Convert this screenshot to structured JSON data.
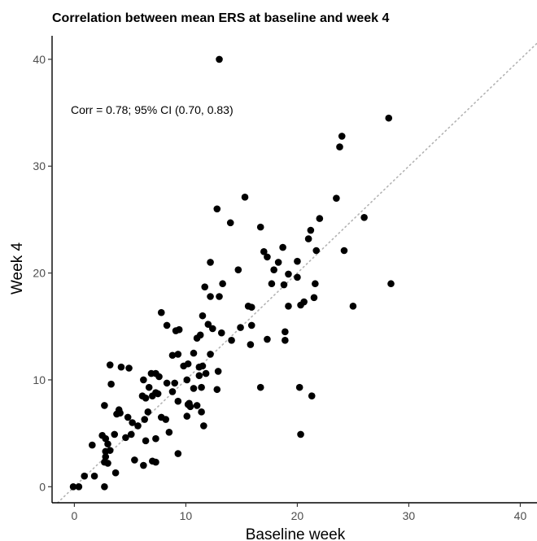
{
  "chart_data": {
    "type": "scatter",
    "title": "Correlation between mean ERS at baseline and week 4",
    "xlabel": "Baseline week",
    "ylabel": "Week 4",
    "annotation": "Corr = 0.78; 95% CI (0.70, 0.83)",
    "xlim": [
      -2,
      41.5
    ],
    "ylim": [
      -1.5,
      42.2
    ],
    "x_ticks": [
      0,
      10,
      20,
      30,
      40
    ],
    "y_ticks": [
      0,
      10,
      20,
      30,
      40
    ],
    "x_tick_labels": [
      "0",
      "10",
      "20",
      "30",
      "40"
    ],
    "y_tick_labels": [
      "0",
      "10",
      "20",
      "30",
      "40"
    ],
    "grid": false,
    "reference_line": "identity (y = x), dotted grey",
    "point_color": "#000000",
    "reference_line_color": "#b3b3b3",
    "points": [
      [
        13,
        40
      ],
      [
        28.2,
        34.5
      ],
      [
        24,
        32.8
      ],
      [
        23.8,
        31.8
      ],
      [
        15.3,
        27.1
      ],
      [
        23.5,
        27
      ],
      [
        12.8,
        26
      ],
      [
        26,
        25.2
      ],
      [
        22,
        25.1
      ],
      [
        14,
        24.7
      ],
      [
        16.7,
        24.3
      ],
      [
        21.2,
        24
      ],
      [
        21,
        23.2
      ],
      [
        18.7,
        22.4
      ],
      [
        24.2,
        22.1
      ],
      [
        21.7,
        22.1
      ],
      [
        17,
        22
      ],
      [
        17.3,
        21.5
      ],
      [
        18.3,
        21
      ],
      [
        20,
        21.1
      ],
      [
        12.2,
        21
      ],
      [
        17.9,
        20.3
      ],
      [
        14.7,
        20.3
      ],
      [
        19.2,
        19.9
      ],
      [
        20,
        19.6
      ],
      [
        13.3,
        19
      ],
      [
        28.4,
        19
      ],
      [
        17.7,
        19
      ],
      [
        18.8,
        18.9
      ],
      [
        21.6,
        19
      ],
      [
        11.7,
        18.7
      ],
      [
        12.2,
        17.8
      ],
      [
        13,
        17.8
      ],
      [
        21.5,
        17.7
      ],
      [
        20.6,
        17.3
      ],
      [
        20.3,
        17
      ],
      [
        25,
        16.9
      ],
      [
        19.2,
        16.9
      ],
      [
        15.6,
        16.9
      ],
      [
        15.9,
        16.8
      ],
      [
        7.8,
        16.3
      ],
      [
        11.5,
        16
      ],
      [
        8.3,
        15.1
      ],
      [
        12,
        15.2
      ],
      [
        12.4,
        14.8
      ],
      [
        14.9,
        14.9
      ],
      [
        15.9,
        15.1
      ],
      [
        9.1,
        14.6
      ],
      [
        9.4,
        14.7
      ],
      [
        11.3,
        14.2
      ],
      [
        13.2,
        14.4
      ],
      [
        18.9,
        14.5
      ],
      [
        18.9,
        13.7
      ],
      [
        14.1,
        13.7
      ],
      [
        11,
        13.9
      ],
      [
        17.3,
        13.8
      ],
      [
        15.8,
        13.3
      ],
      [
        10.7,
        12.5
      ],
      [
        9.3,
        12.4
      ],
      [
        8.8,
        12.3
      ],
      [
        12.2,
        12.4
      ],
      [
        3.2,
        11.4
      ],
      [
        4.2,
        11.2
      ],
      [
        4.9,
        11.1
      ],
      [
        10.2,
        11.5
      ],
      [
        11.2,
        11.2
      ],
      [
        11.5,
        11.3
      ],
      [
        9.8,
        11.3
      ],
      [
        7.3,
        10.6
      ],
      [
        12.9,
        10.8
      ],
      [
        11.8,
        10.6
      ],
      [
        11.2,
        10.4
      ],
      [
        7.6,
        10.3
      ],
      [
        6.9,
        10.6
      ],
      [
        6.2,
        10
      ],
      [
        10.1,
        10
      ],
      [
        8.3,
        9.7
      ],
      [
        9,
        9.7
      ],
      [
        6.7,
        9.3
      ],
      [
        10.7,
        9.2
      ],
      [
        11.4,
        9.3
      ],
      [
        12.8,
        9.1
      ],
      [
        16.7,
        9.3
      ],
      [
        20.2,
        9.3
      ],
      [
        3.3,
        9.6
      ],
      [
        7.3,
        8.8
      ],
      [
        8.8,
        8.9
      ],
      [
        7,
        8.5
      ],
      [
        6.4,
        8.3
      ],
      [
        6.1,
        8.5
      ],
      [
        7.5,
        8.7
      ],
      [
        21.3,
        8.5
      ],
      [
        9.3,
        8
      ],
      [
        10.3,
        7.8
      ],
      [
        10.4,
        7.5
      ],
      [
        11,
        7.6
      ],
      [
        10.2,
        7.7
      ],
      [
        2.7,
        7.6
      ],
      [
        4,
        7.2
      ],
      [
        4.1,
        6.9
      ],
      [
        6.6,
        7
      ],
      [
        7.8,
        6.5
      ],
      [
        11.4,
        7
      ],
      [
        3.8,
        6.8
      ],
      [
        4.8,
        6.5
      ],
      [
        8.2,
        6.3
      ],
      [
        6.3,
        6.3
      ],
      [
        10.1,
        6.6
      ],
      [
        5.2,
        6
      ],
      [
        5.7,
        5.7
      ],
      [
        11.6,
        5.7
      ],
      [
        8.5,
        5.1
      ],
      [
        5.1,
        4.9
      ],
      [
        3.6,
        4.9
      ],
      [
        2.5,
        4.8
      ],
      [
        4.6,
        4.6
      ],
      [
        7.3,
        4.5
      ],
      [
        2.8,
        4.5
      ],
      [
        6.4,
        4.3
      ],
      [
        3,
        4
      ],
      [
        1.6,
        3.9
      ],
      [
        3.2,
        3.4
      ],
      [
        2.8,
        3.3
      ],
      [
        20.3,
        4.9
      ],
      [
        9.3,
        3.1
      ],
      [
        2.8,
        2.8
      ],
      [
        5.4,
        2.5
      ],
      [
        7,
        2.4
      ],
      [
        7.3,
        2.3
      ],
      [
        6.2,
        2
      ],
      [
        3,
        2.2
      ],
      [
        2.7,
        2.3
      ],
      [
        3.7,
        1.3
      ],
      [
        0.9,
        1
      ],
      [
        1.8,
        1
      ],
      [
        -0.1,
        0
      ],
      [
        0.4,
        0
      ],
      [
        2.7,
        0
      ]
    ]
  }
}
